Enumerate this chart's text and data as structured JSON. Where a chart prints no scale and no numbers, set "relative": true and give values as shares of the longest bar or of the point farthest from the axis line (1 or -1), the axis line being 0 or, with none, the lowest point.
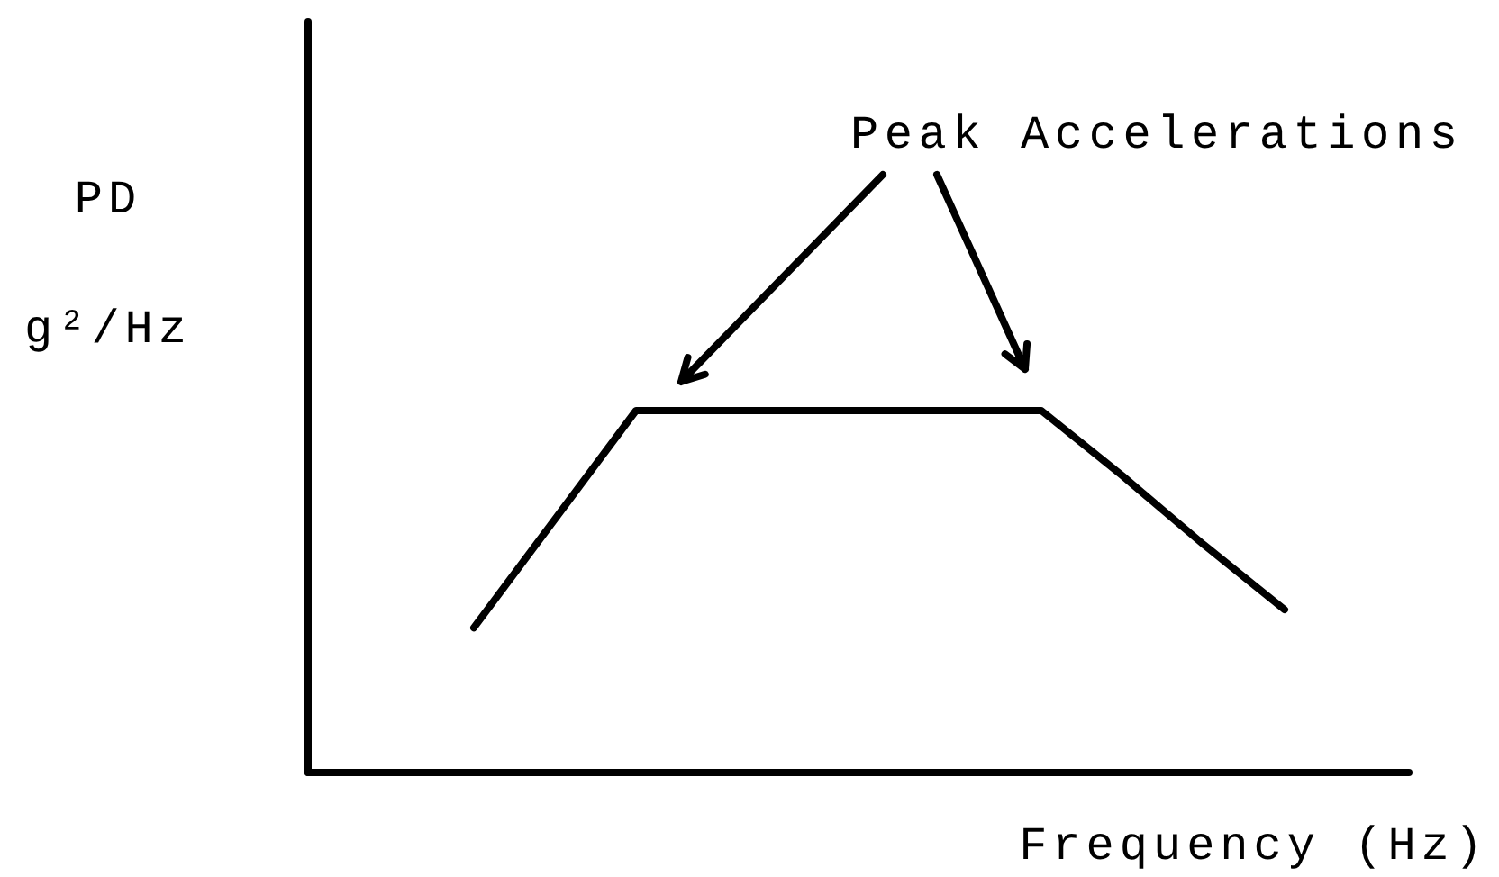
{
  "chart_data": {
    "type": "line",
    "relative": true,
    "tick_labels": false,
    "ylabel": "PD\ng²/Hz",
    "xlabel": "Frequency (Hz)",
    "categories": [
      null,
      null,
      null,
      null,
      null,
      null,
      null,
      null,
      null,
      null,
      null,
      null,
      null,
      null
    ],
    "values": [
      null,
      null,
      0.4,
      0.7,
      1,
      1,
      1,
      1,
      1,
      1,
      0.82,
      0.63,
      0.45,
      null
    ],
    "color": "#000000",
    "annotations": [
      "Peak Accelerations"
    ]
  }
}
